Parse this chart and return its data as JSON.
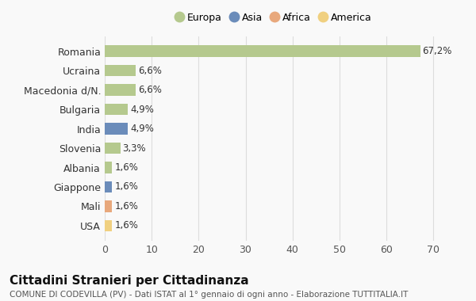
{
  "countries": [
    "Romania",
    "Ucraina",
    "Macedonia d/N.",
    "Bulgaria",
    "India",
    "Slovenia",
    "Albania",
    "Giappone",
    "Mali",
    "USA"
  ],
  "values": [
    67.2,
    6.6,
    6.6,
    4.9,
    4.9,
    3.3,
    1.6,
    1.6,
    1.6,
    1.6
  ],
  "labels": [
    "67,2%",
    "6,6%",
    "6,6%",
    "4,9%",
    "4,9%",
    "3,3%",
    "1,6%",
    "1,6%",
    "1,6%",
    "1,6%"
  ],
  "continents": [
    "Europa",
    "Europa",
    "Europa",
    "Europa",
    "Asia",
    "Europa",
    "Europa",
    "Asia",
    "Africa",
    "America"
  ],
  "colors": {
    "Europa": "#b5c98e",
    "Asia": "#6b8cba",
    "Africa": "#e8a87c",
    "America": "#f0d080"
  },
  "legend_order": [
    "Europa",
    "Asia",
    "Africa",
    "America"
  ],
  "legend_colors": [
    "#b5c98e",
    "#6b8cba",
    "#e8a87c",
    "#f0d080"
  ],
  "xlim": [
    0,
    72
  ],
  "xticks": [
    0,
    10,
    20,
    30,
    40,
    50,
    60,
    70
  ],
  "title": "Cittadini Stranieri per Cittadinanza",
  "subtitle": "COMUNE DI CODEVILLA (PV) - Dati ISTAT al 1° gennaio di ogni anno - Elaborazione TUTTITALIA.IT",
  "background_color": "#f9f9f9",
  "grid_color": "#dddddd"
}
